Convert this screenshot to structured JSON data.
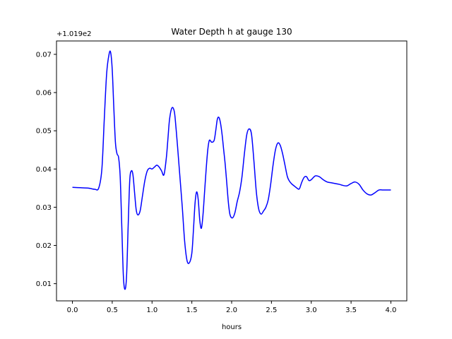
{
  "chart_data": {
    "type": "line",
    "title": "Water Depth h at gauge 130",
    "xlabel": "hours",
    "ylabel": "",
    "offset_label": "+1.019e2",
    "y_offset": 101.9,
    "xlim": [
      -0.2,
      4.2
    ],
    "ylim": [
      0.0055,
      0.0735
    ],
    "x_ticks": [
      0.0,
      0.5,
      1.0,
      1.5,
      2.0,
      2.5,
      3.0,
      3.5,
      4.0
    ],
    "x_tick_labels": [
      "0.0",
      "0.5",
      "1.0",
      "1.5",
      "2.0",
      "2.5",
      "3.0",
      "3.5",
      "4.0"
    ],
    "y_ticks": [
      0.01,
      0.02,
      0.03,
      0.04,
      0.05,
      0.06,
      0.07
    ],
    "y_tick_labels": [
      "0.01",
      "0.02",
      "0.03",
      "0.04",
      "0.05",
      "0.06",
      "0.07"
    ],
    "grid": false,
    "legend": "none",
    "series": [
      {
        "color": "#0000ff",
        "x": [
          0.0,
          0.1,
          0.2,
          0.28,
          0.33,
          0.37,
          0.4,
          0.43,
          0.46,
          0.48,
          0.5,
          0.52,
          0.54,
          0.56,
          0.58,
          0.6,
          0.62,
          0.64,
          0.66,
          0.68,
          0.7,
          0.72,
          0.74,
          0.76,
          0.78,
          0.8,
          0.82,
          0.85,
          0.88,
          0.91,
          0.94,
          0.97,
          1.0,
          1.03,
          1.06,
          1.09,
          1.12,
          1.15,
          1.18,
          1.2,
          1.22,
          1.25,
          1.28,
          1.3,
          1.32,
          1.35,
          1.38,
          1.41,
          1.44,
          1.47,
          1.5,
          1.52,
          1.54,
          1.56,
          1.58,
          1.6,
          1.62,
          1.64,
          1.66,
          1.68,
          1.7,
          1.72,
          1.75,
          1.78,
          1.8,
          1.82,
          1.84,
          1.86,
          1.88,
          1.9,
          1.92,
          1.94,
          1.96,
          1.98,
          2.01,
          2.04,
          2.07,
          2.1,
          2.13,
          2.16,
          2.19,
          2.22,
          2.25,
          2.28,
          2.31,
          2.34,
          2.37,
          2.4,
          2.43,
          2.46,
          2.49,
          2.52,
          2.55,
          2.58,
          2.61,
          2.64,
          2.67,
          2.7,
          2.73,
          2.76,
          2.79,
          2.82,
          2.85,
          2.88,
          2.91,
          2.94,
          2.97,
          3.0,
          3.05,
          3.1,
          3.15,
          3.2,
          3.25,
          3.3,
          3.35,
          3.4,
          3.45,
          3.5,
          3.55,
          3.6,
          3.65,
          3.7,
          3.75,
          3.8,
          3.85,
          3.9,
          3.95,
          4.0
        ],
        "y": [
          0.0352,
          0.0351,
          0.035,
          0.0347,
          0.035,
          0.04,
          0.053,
          0.065,
          0.07,
          0.0705,
          0.066,
          0.056,
          0.047,
          0.044,
          0.043,
          0.038,
          0.025,
          0.012,
          0.0085,
          0.012,
          0.025,
          0.037,
          0.0395,
          0.0385,
          0.034,
          0.0295,
          0.028,
          0.029,
          0.033,
          0.037,
          0.0395,
          0.0402,
          0.04,
          0.0405,
          0.041,
          0.0405,
          0.0395,
          0.0385,
          0.043,
          0.048,
          0.053,
          0.056,
          0.055,
          0.051,
          0.046,
          0.038,
          0.03,
          0.021,
          0.016,
          0.0155,
          0.018,
          0.024,
          0.031,
          0.034,
          0.032,
          0.0265,
          0.0245,
          0.028,
          0.034,
          0.04,
          0.045,
          0.0475,
          0.047,
          0.0475,
          0.05,
          0.053,
          0.0535,
          0.052,
          0.049,
          0.045,
          0.041,
          0.036,
          0.031,
          0.028,
          0.0272,
          0.0285,
          0.0315,
          0.034,
          0.038,
          0.044,
          0.049,
          0.0505,
          0.049,
          0.042,
          0.034,
          0.0295,
          0.0282,
          0.029,
          0.03,
          0.032,
          0.036,
          0.041,
          0.045,
          0.0468,
          0.0462,
          0.044,
          0.041,
          0.038,
          0.0367,
          0.036,
          0.0355,
          0.035,
          0.0348,
          0.0365,
          0.0378,
          0.038,
          0.037,
          0.0372,
          0.0382,
          0.038,
          0.0372,
          0.0366,
          0.0364,
          0.0362,
          0.036,
          0.0357,
          0.0356,
          0.0362,
          0.0366,
          0.036,
          0.0345,
          0.0335,
          0.0332,
          0.0338,
          0.0345,
          0.0345,
          0.0345,
          0.0345
        ]
      }
    ]
  }
}
